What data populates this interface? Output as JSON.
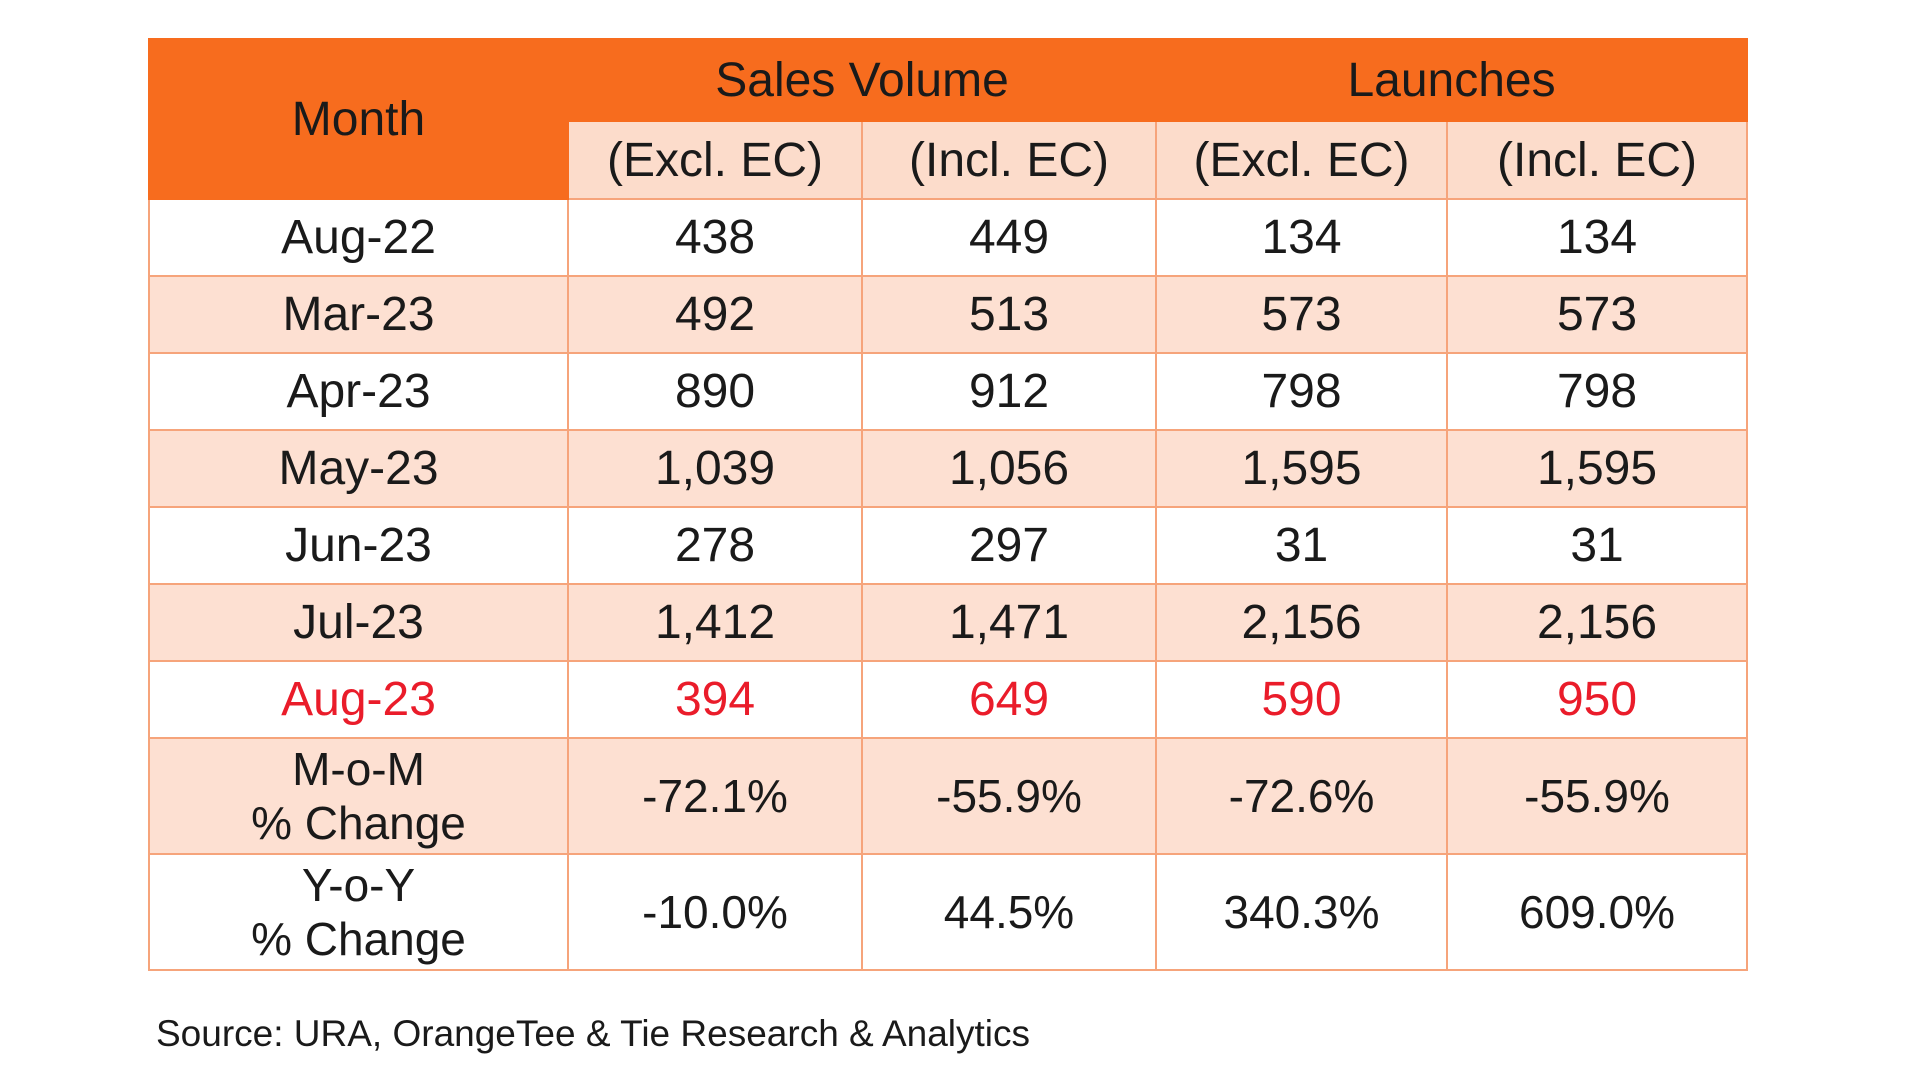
{
  "colors": {
    "header_bg": "#f76c1e",
    "sub_header_bg": "#fcdccb",
    "alt_row_bg": "#fde0d2",
    "highlight_text": "#ea1c2a",
    "border": "#f6a47b"
  },
  "chart_data": {
    "type": "table",
    "row_header_label": "Month",
    "column_groups": [
      {
        "label": "Sales Volume",
        "columns": [
          "(Excl. EC)",
          "(Incl. EC)"
        ]
      },
      {
        "label": "Launches",
        "columns": [
          "(Excl. EC)",
          "(Incl. EC)"
        ]
      }
    ],
    "rows": [
      {
        "month": "Aug-22",
        "values": [
          "438",
          "449",
          "134",
          "134"
        ]
      },
      {
        "month": "Mar-23",
        "values": [
          "492",
          "513",
          "573",
          "573"
        ]
      },
      {
        "month": "Apr-23",
        "values": [
          "890",
          "912",
          "798",
          "798"
        ]
      },
      {
        "month": "May-23",
        "values": [
          "1,039",
          "1,056",
          "1,595",
          "1,595"
        ]
      },
      {
        "month": "Jun-23",
        "values": [
          "278",
          "297",
          "31",
          "31"
        ]
      },
      {
        "month": "Jul-23",
        "values": [
          "1,412",
          "1,471",
          "2,156",
          "2,156"
        ]
      },
      {
        "month": "Aug-23",
        "values": [
          "394",
          "649",
          "590",
          "950"
        ],
        "highlighted": true
      }
    ],
    "change_rows": [
      {
        "label_line1": "M-o-M",
        "label_line2": "% Change",
        "values": [
          "-72.1%",
          "-55.9%",
          "-72.6%",
          "-55.9%"
        ]
      },
      {
        "label_line1": "Y-o-Y",
        "label_line2": "% Change",
        "values": [
          "-10.0%",
          "44.5%",
          "340.3%",
          "609.0%"
        ]
      }
    ],
    "source": "Source: URA, OrangeTee & Tie Research & Analytics"
  }
}
